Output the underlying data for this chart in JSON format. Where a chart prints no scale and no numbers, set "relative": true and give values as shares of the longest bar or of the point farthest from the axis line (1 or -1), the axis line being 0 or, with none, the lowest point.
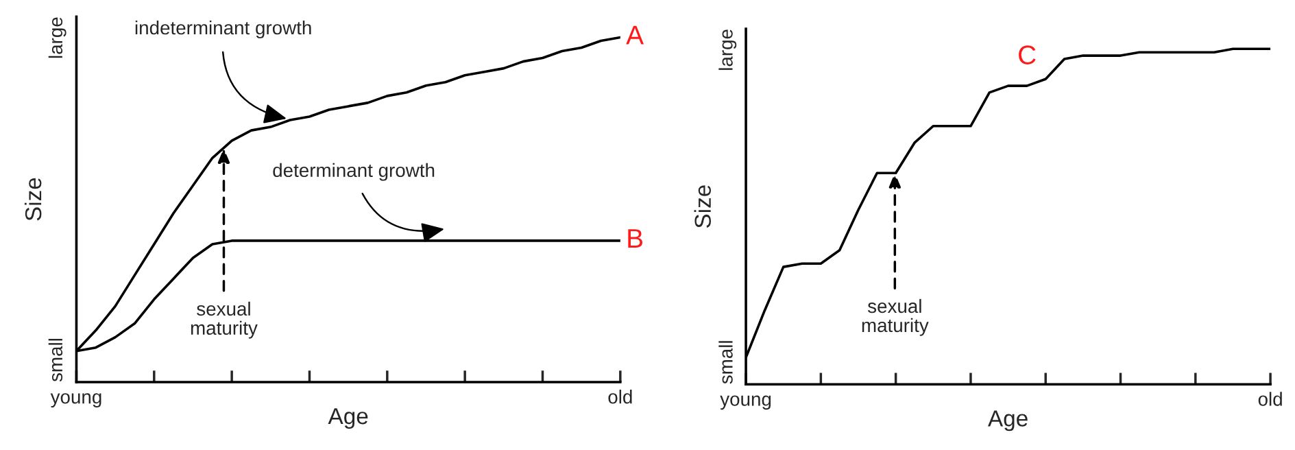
{
  "chart_data": [
    {
      "type": "line",
      "relative": true,
      "xlabel": "Age",
      "ylabel": "Size",
      "categories": [
        "young",
        null,
        null,
        null,
        null,
        null,
        null,
        null,
        null,
        null,
        null,
        null,
        null,
        null,
        null,
        null,
        null,
        null,
        null,
        null,
        null,
        null,
        null,
        null,
        null,
        null,
        null,
        null,
        "old"
      ],
      "series": [
        {
          "name": "A",
          "color": "#000000",
          "values": [
            0.09,
            0.15,
            0.22,
            0.31,
            0.4,
            0.49,
            0.57,
            0.65,
            0.7,
            0.73,
            0.74,
            0.76,
            0.77,
            0.79,
            0.8,
            0.81,
            0.83,
            0.84,
            0.86,
            0.87,
            0.89,
            0.9,
            0.91,
            0.93,
            0.94,
            0.96,
            0.97,
            0.99,
            1.0
          ]
        },
        {
          "name": "B",
          "color": "#000000",
          "values": [
            0.09,
            0.1,
            0.13,
            0.17,
            0.24,
            0.3,
            0.36,
            0.4,
            0.41,
            0.41,
            0.41,
            0.41,
            0.41,
            0.41,
            0.41,
            0.41,
            0.41,
            0.41,
            0.41,
            0.41,
            0.41,
            0.41,
            0.41,
            0.41,
            0.41,
            0.41,
            0.41,
            0.41,
            0.41
          ]
        }
      ],
      "annotations": [
        "small",
        "large",
        "indeterminant growth",
        "determinant growth",
        "sexual\nmaturity"
      ],
      "grid": false,
      "legend": false,
      "marker": "none",
      "line_style": "solid"
    },
    {
      "type": "line",
      "relative": true,
      "xlabel": "Age",
      "ylabel": "Size",
      "categories": [
        "young",
        null,
        null,
        null,
        null,
        null,
        null,
        null,
        null,
        null,
        null,
        null,
        null,
        null,
        null,
        null,
        null,
        null,
        null,
        null,
        null,
        null,
        null,
        null,
        null,
        null,
        null,
        null,
        "old"
      ],
      "series": [
        {
          "name": "C",
          "color": "#000000",
          "values": [
            0.08,
            0.22,
            0.35,
            0.36,
            0.36,
            0.4,
            0.52,
            0.63,
            0.63,
            0.72,
            0.77,
            0.77,
            0.77,
            0.87,
            0.89,
            0.89,
            0.91,
            0.97,
            0.98,
            0.98,
            0.98,
            0.99,
            0.99,
            0.99,
            0.99,
            0.99,
            1.0,
            1.0,
            1.0
          ]
        }
      ],
      "annotations": [
        "small",
        "large",
        "sexual\nmaturity"
      ],
      "grid": false,
      "legend": false,
      "marker": "none",
      "line_style": "solid"
    }
  ]
}
